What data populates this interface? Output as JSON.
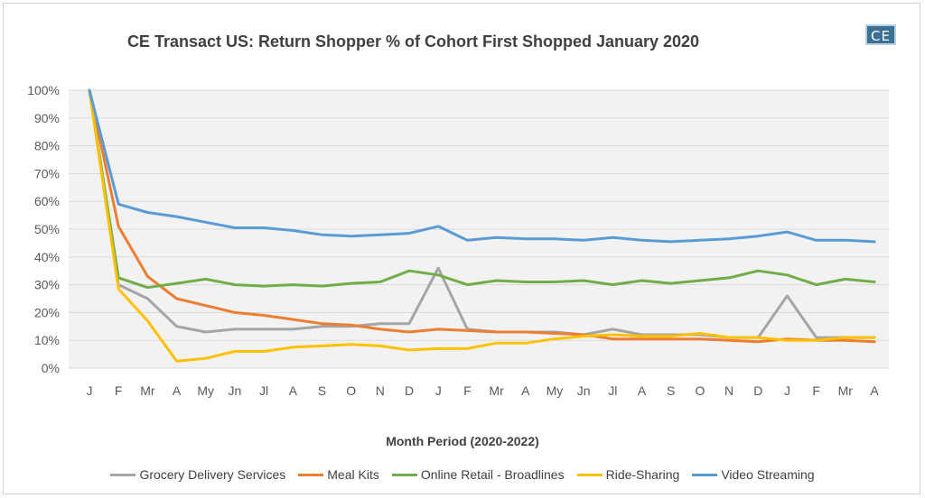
{
  "chart_data": {
    "type": "line",
    "title": "CE Transact US: Return Shopper % of Cohort First Shopped January 2020",
    "xlabel": "Month Period (2020-2022)",
    "ylabel": "",
    "ylim": [
      0,
      100
    ],
    "y_ticks": [
      "0%",
      "10%",
      "20%",
      "30%",
      "40%",
      "50%",
      "60%",
      "70%",
      "80%",
      "90%",
      "100%"
    ],
    "categories": [
      "J",
      "F",
      "Mr",
      "A",
      "My",
      "Jn",
      "Jl",
      "A",
      "S",
      "O",
      "N",
      "D",
      "J",
      "F",
      "Mr",
      "A",
      "My",
      "Jn",
      "Jl",
      "A",
      "S",
      "O",
      "N",
      "D",
      "J",
      "F",
      "Mr",
      "A"
    ],
    "grid": "horizontal",
    "legend_position": "bottom",
    "series": [
      {
        "name": "Grocery Delivery Services",
        "color": "#a5a5a5",
        "values": [
          100,
          30,
          25,
          15,
          13,
          14,
          14,
          14,
          15,
          15,
          16,
          16,
          36,
          14,
          13,
          13,
          13,
          12,
          14,
          12,
          12,
          12,
          11,
          11,
          26,
          11,
          11,
          11
        ]
      },
      {
        "name": "Meal Kits",
        "color": "#ed7d31",
        "values": [
          100,
          51,
          33,
          25,
          22.5,
          20,
          19,
          17.5,
          16,
          15.5,
          14,
          13,
          14,
          13.5,
          13,
          13,
          12.5,
          12,
          10.5,
          10.5,
          10.5,
          10.5,
          10,
          9.5,
          10.5,
          10,
          10,
          9.5
        ]
      },
      {
        "name": "Online Retail - Broadlines",
        "color": "#70ad47",
        "values": [
          100,
          32.5,
          29,
          30.5,
          32,
          30,
          29.5,
          30,
          29.5,
          30.5,
          31,
          35,
          33.5,
          30,
          31.5,
          31,
          31,
          31.5,
          30,
          31.5,
          30.5,
          31.5,
          32.5,
          35,
          33.5,
          30,
          32,
          31
        ]
      },
      {
        "name": "Ride-Sharing",
        "color": "#ffc000",
        "values": [
          100,
          28.5,
          17,
          2.5,
          3.5,
          6,
          6,
          7.5,
          8,
          8.5,
          8,
          6.5,
          7,
          7,
          9,
          9,
          10.5,
          11.5,
          12,
          11.5,
          11.5,
          12.5,
          11,
          11,
          10,
          10,
          11,
          11
        ]
      },
      {
        "name": "Video Streaming",
        "color": "#5b9bd5",
        "values": [
          100,
          59,
          56,
          54.5,
          52.5,
          50.5,
          50.5,
          49.5,
          48,
          47.5,
          48,
          48.5,
          51,
          46,
          47,
          46.5,
          46.5,
          46,
          47,
          46,
          45.5,
          46,
          46.5,
          47.5,
          49,
          46,
          46,
          45.5
        ]
      }
    ]
  },
  "logo_text": "CE"
}
